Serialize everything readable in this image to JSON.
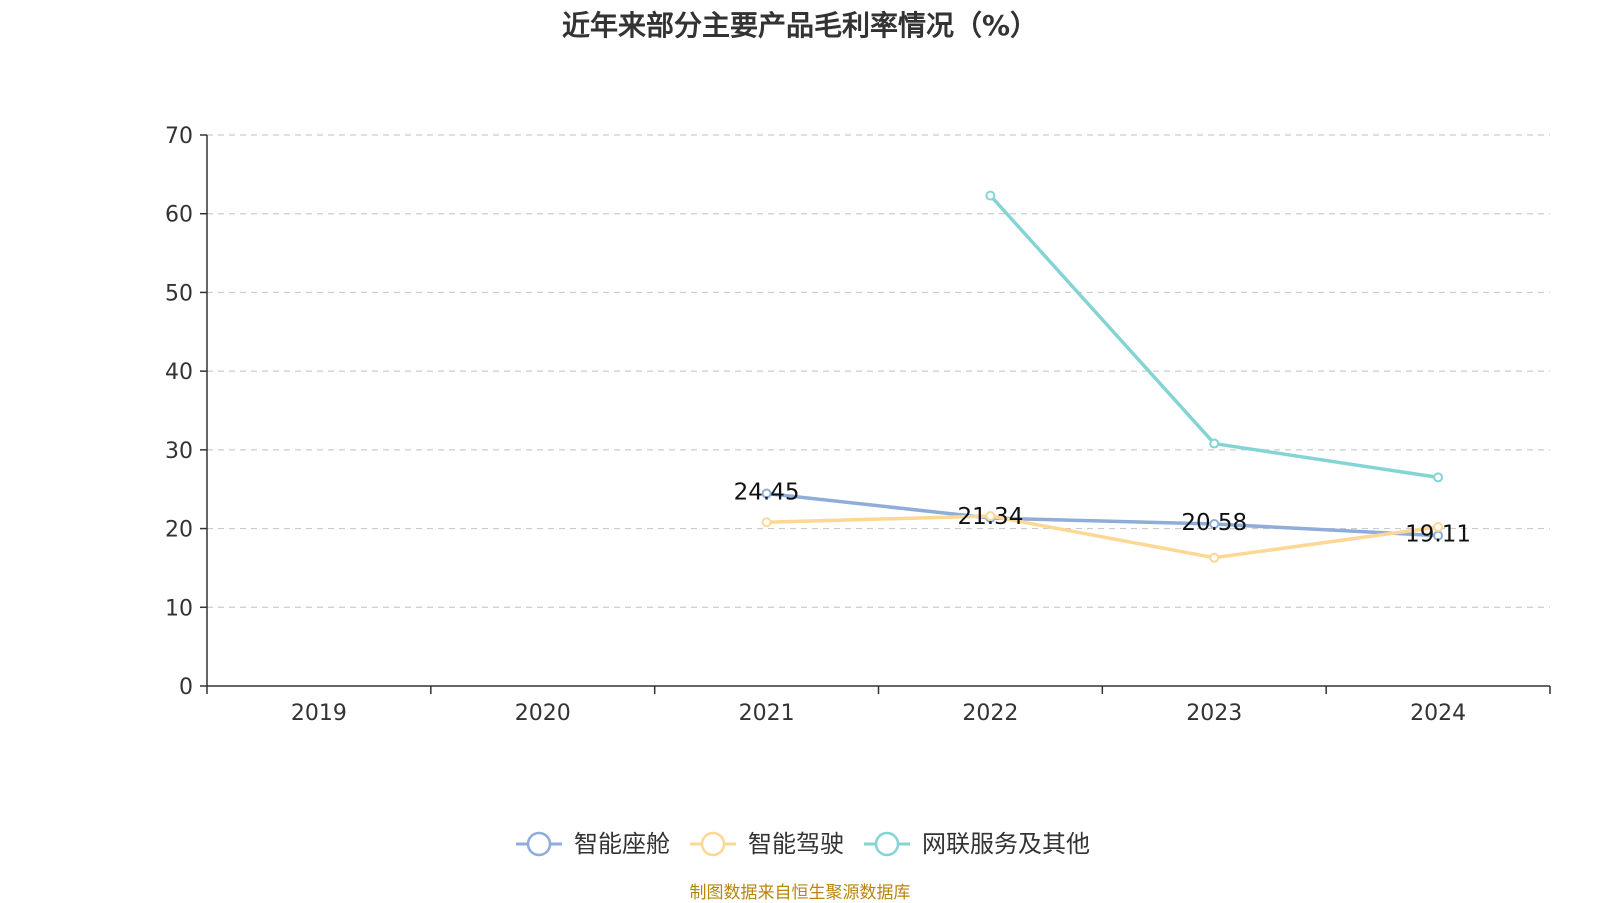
{
  "chart_data": {
    "type": "line",
    "title": "近年来部分主要产品毛利率情况（%）",
    "xlabel": "",
    "ylabel": "",
    "categories": [
      "2019",
      "2020",
      "2021",
      "2022",
      "2023",
      "2024"
    ],
    "ylim": [
      0,
      70
    ],
    "yticks": [
      0,
      10,
      20,
      30,
      40,
      50,
      60,
      70
    ],
    "grid": true,
    "legend_position": "bottom-center",
    "series": [
      {
        "name": "智能座舱",
        "color": "#8fadd9",
        "values": [
          null,
          null,
          24.45,
          21.34,
          20.58,
          19.11
        ],
        "labels": [
          "",
          "",
          "24.45",
          "21.34",
          "20.58",
          "19.11"
        ]
      },
      {
        "name": "智能驾驶",
        "color": "#fdd794",
        "values": [
          null,
          null,
          20.8,
          21.6,
          16.3,
          20.2
        ],
        "labels": []
      },
      {
        "name": "网联服务及其他",
        "color": "#84d4d4",
        "values": [
          null,
          null,
          null,
          62.3,
          30.8,
          26.5
        ],
        "labels": []
      }
    ],
    "source": "制图数据来自恒生聚源数据库"
  }
}
